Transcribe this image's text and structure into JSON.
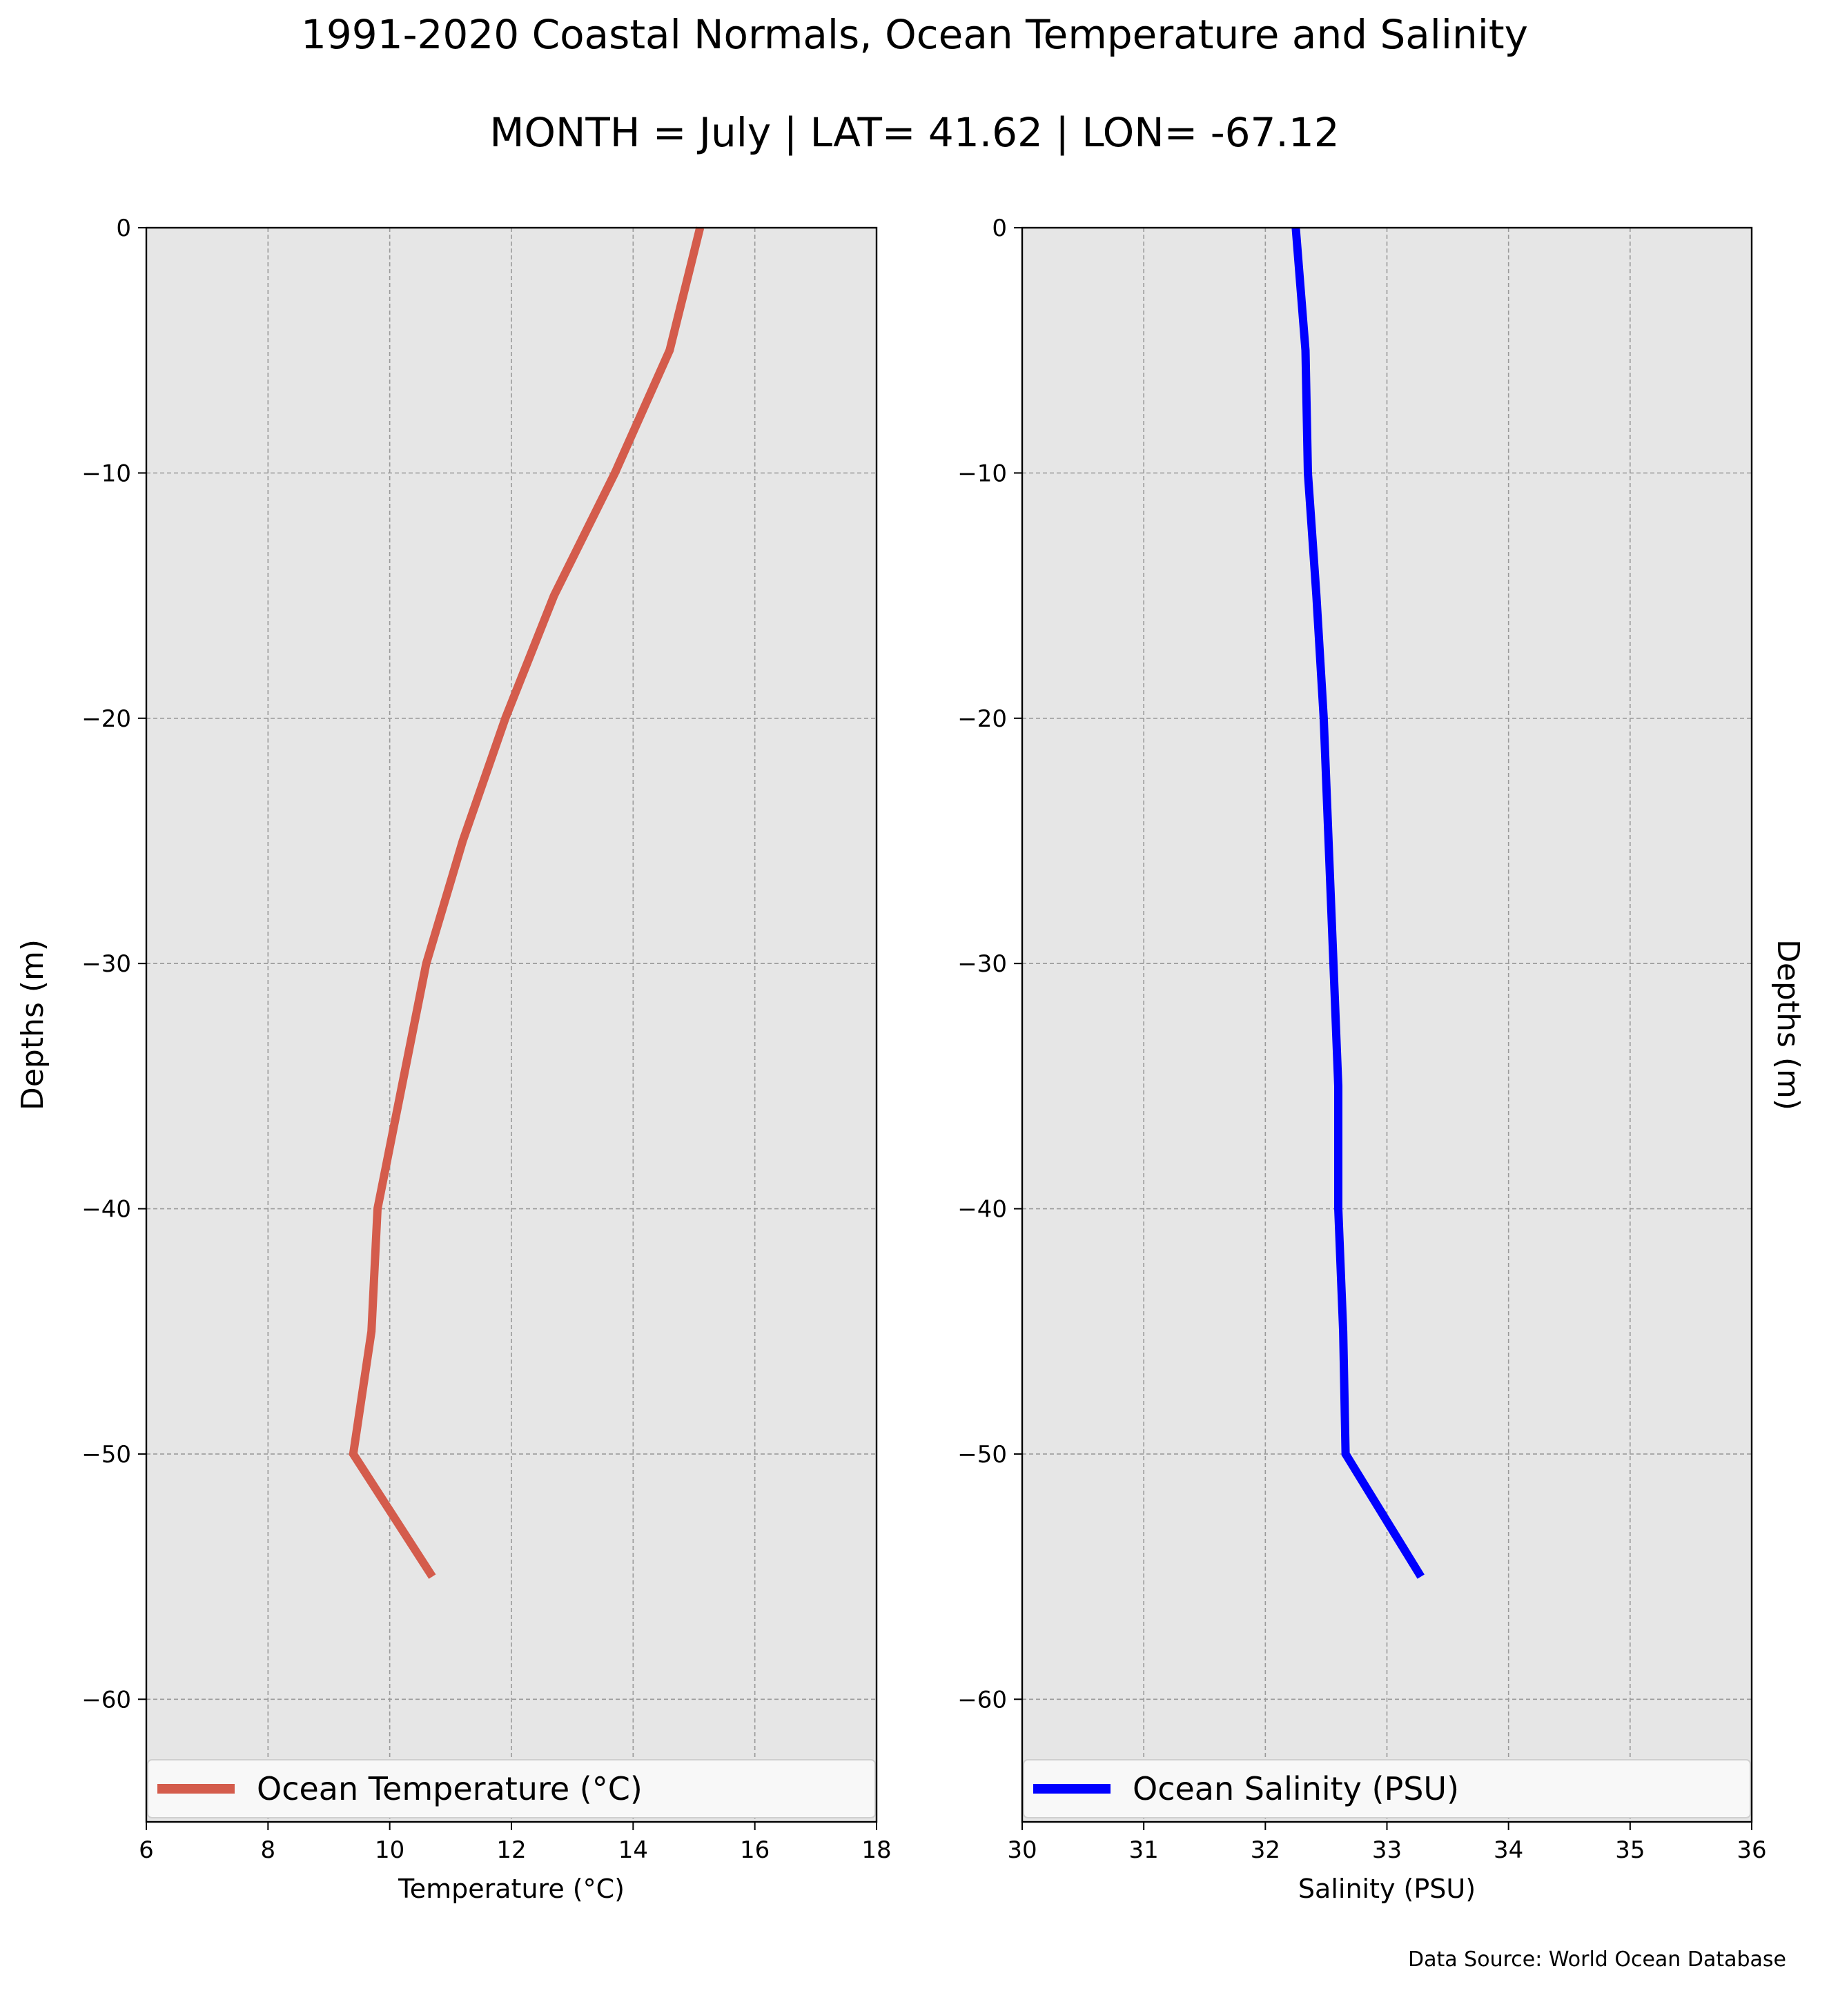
{
  "title": "1991-2020 Coastal Normals, Ocean Temperature and Salinity",
  "subtitle": "MONTH = July | LAT= 41.62 | LON= -67.12",
  "source_note": "Data Source: World Ocean Database",
  "colors": {
    "panel_bg": "#e6e6e6",
    "grid": "#9a9a9a",
    "temperature_line": "#d45c4c",
    "salinity_line": "#0000ff",
    "legend_bg": "#f8f8f8"
  },
  "chart_data": [
    {
      "type": "line",
      "orientation": "depth-profile",
      "xlabel": "Temperature ($^\\circ$C)",
      "ylabel": "Depths (m)",
      "xlim": [
        6,
        18
      ],
      "ylim": [
        -65,
        0
      ],
      "xticks": [
        "6",
        "8",
        "10",
        "12",
        "14",
        "16",
        "18"
      ],
      "yticks": [
        "0",
        "−10",
        "−20",
        "−30",
        "−40",
        "−50",
        "−60"
      ],
      "grid": true,
      "legend_loc": "lower-center",
      "series": [
        {
          "name": "Ocean Temperature ($^\\circ$C)",
          "color": "#d45c4c",
          "x": [
            15.1,
            14.6,
            13.7,
            12.7,
            11.9,
            11.2,
            10.6,
            10.2,
            9.8,
            9.7,
            9.4,
            10.7
          ],
          "y": [
            0,
            -5,
            -10,
            -15,
            -20,
            -25,
            -30,
            -35,
            -40,
            -45,
            -50,
            -55
          ]
        }
      ]
    },
    {
      "type": "line",
      "orientation": "depth-profile",
      "xlabel": "Salinity (PSU)",
      "ylabel": "Depths (m)",
      "xlim": [
        30,
        36
      ],
      "ylim": [
        -65,
        0
      ],
      "xticks": [
        "30",
        "31",
        "32",
        "33",
        "34",
        "35",
        "36"
      ],
      "yticks": [
        "0",
        "−10",
        "−20",
        "−30",
        "−40",
        "−50",
        "−60"
      ],
      "grid": true,
      "legend_loc": "lower-center",
      "series": [
        {
          "name": "Ocean Salinity (PSU)",
          "color": "#0000ff",
          "x": [
            32.25,
            32.33,
            32.35,
            32.42,
            32.48,
            32.52,
            32.56,
            32.6,
            32.6,
            32.64,
            32.66,
            33.28
          ],
          "y": [
            0,
            -5,
            -10,
            -15,
            -20,
            -25,
            -30,
            -35,
            -40,
            -45,
            -50,
            -55
          ]
        }
      ]
    }
  ]
}
